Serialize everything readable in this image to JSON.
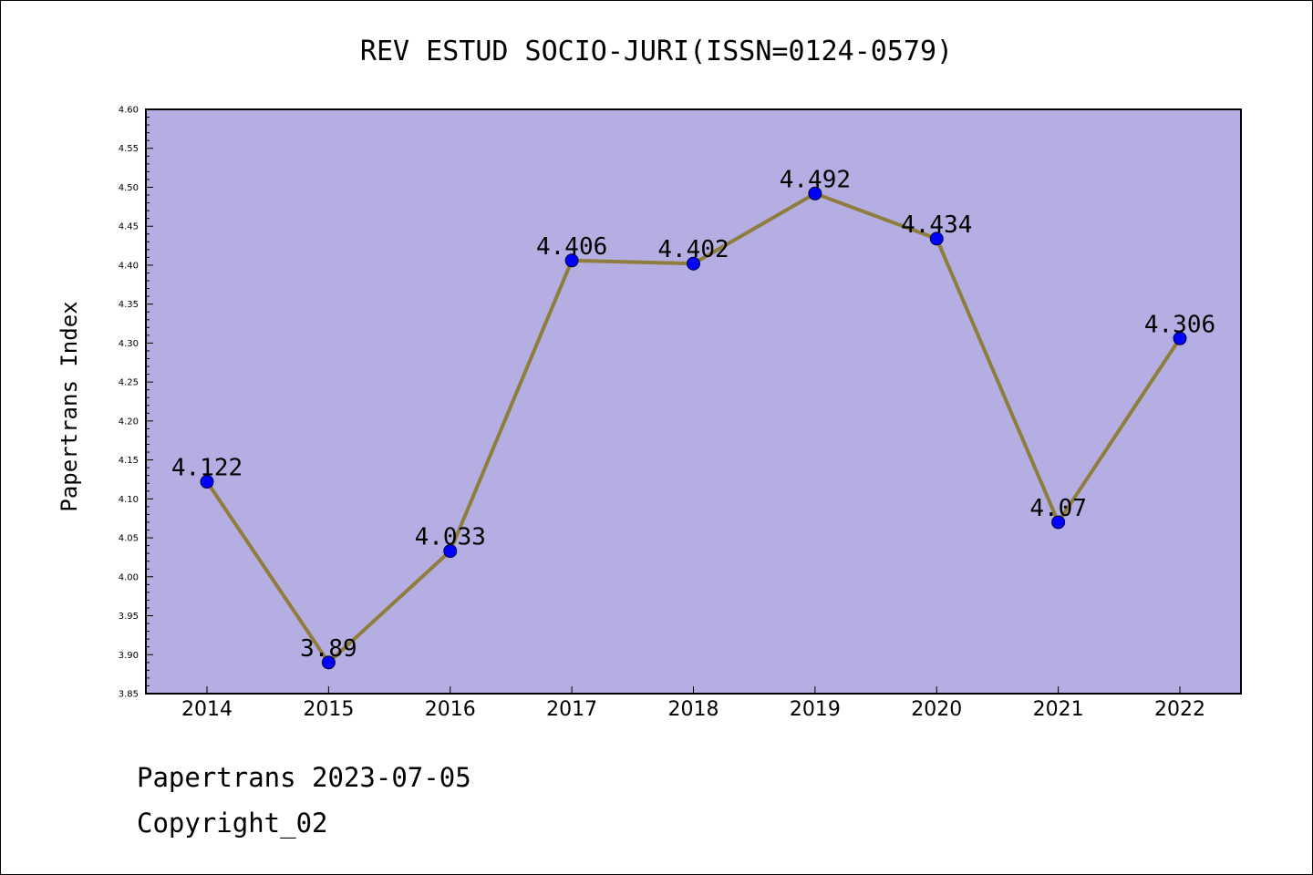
{
  "chart_data": {
    "type": "line",
    "title": "REV ESTUD SOCIO-JURI(ISSN=0124-0579)",
    "xlabel": "",
    "ylabel": "Papertrans Index",
    "categories": [
      "2014",
      "2015",
      "2016",
      "2017",
      "2018",
      "2019",
      "2020",
      "2021",
      "2022"
    ],
    "series": [
      {
        "values": [
          4.122,
          3.89,
          4.033,
          4.406,
          4.402,
          4.492,
          4.434,
          4.07,
          4.306
        ]
      }
    ],
    "data_labels": [
      "4.122",
      "3.89",
      "4.033",
      "4.406",
      "4.402",
      "4.492",
      "4.434",
      "4.07",
      "4.306"
    ],
    "ylim": [
      3.85,
      4.6
    ],
    "yticks": [
      "3.85",
      "3.90",
      "3.95",
      "4.00",
      "4.05",
      "4.10",
      "4.15",
      "4.20",
      "4.25",
      "4.30",
      "4.35",
      "4.40",
      "4.45",
      "4.50",
      "4.55",
      "4.60"
    ],
    "grid": false,
    "legend": "none",
    "colors": {
      "plot_background": "#b4aee2",
      "line": "#8e7d3c",
      "marker": "#0000ff"
    }
  },
  "footer": {
    "line1": "Papertrans 2023-07-05",
    "line2": "Copyright_02"
  }
}
